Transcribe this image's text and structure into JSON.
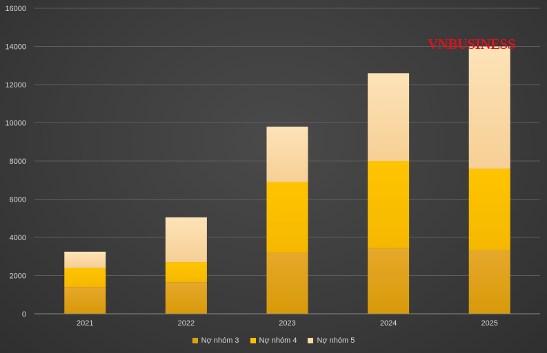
{
  "watermark": "VNBUSINESS",
  "chart_data": {
    "type": "bar",
    "stacked": true,
    "categories": [
      "2021",
      "2022",
      "2023",
      "2024",
      "2025"
    ],
    "series": [
      {
        "name": "Nợ nhóm 3",
        "color": "#e0a10d",
        "values": [
          1400,
          1650,
          3200,
          3450,
          3350
        ]
      },
      {
        "name": "Nợ nhóm 4",
        "color": "#ffc000",
        "values": [
          1000,
          1050,
          3700,
          4550,
          4250
        ]
      },
      {
        "name": "Nợ nhóm 5",
        "color": "#fcd9a0",
        "values": [
          850,
          2350,
          2900,
          4600,
          6400
        ]
      }
    ],
    "ylim": [
      0,
      16000
    ],
    "yticks": [
      "0",
      "2000",
      "4000",
      "6000",
      "8000",
      "10000",
      "12000",
      "14000",
      "16000"
    ],
    "grid": true,
    "legend": "bottom"
  }
}
